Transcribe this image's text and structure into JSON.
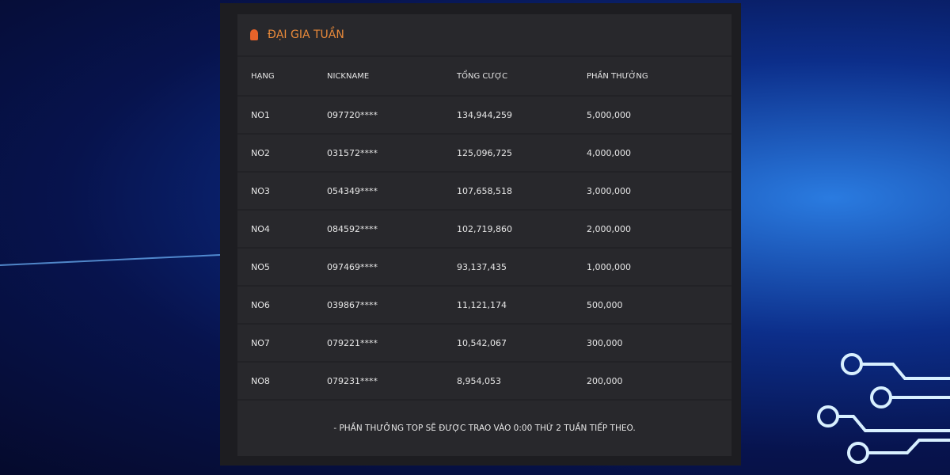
{
  "header": {
    "title": "ĐẠI GIA TUẦN"
  },
  "table": {
    "columns": [
      "HẠNG",
      "NICKNAME",
      "TỔNG CƯỢC",
      "PHẦN THƯỞNG"
    ],
    "rows": [
      [
        "NO1",
        "097720****",
        "134,944,259",
        "5,000,000"
      ],
      [
        "NO2",
        "031572****",
        "125,096,725",
        "4,000,000"
      ],
      [
        "NO3",
        "054349****",
        "107,658,518",
        "3,000,000"
      ],
      [
        "NO4",
        "084592****",
        "102,719,860",
        "2,000,000"
      ],
      [
        "NO5",
        "097469****",
        "93,137,435",
        "1,000,000"
      ],
      [
        "NO6",
        "039867****",
        "11,121,174",
        "500,000"
      ],
      [
        "NO7",
        "079221****",
        "10,542,067",
        "300,000"
      ],
      [
        "NO8",
        "079231****",
        "8,954,053",
        "200,000"
      ]
    ]
  },
  "footer": {
    "note": "- PHẦN THƯỞNG TOP SẼ ĐƯỢC TRAO VÀO 0:00 THỨ 2 TUẦN TIẾP THEO."
  }
}
